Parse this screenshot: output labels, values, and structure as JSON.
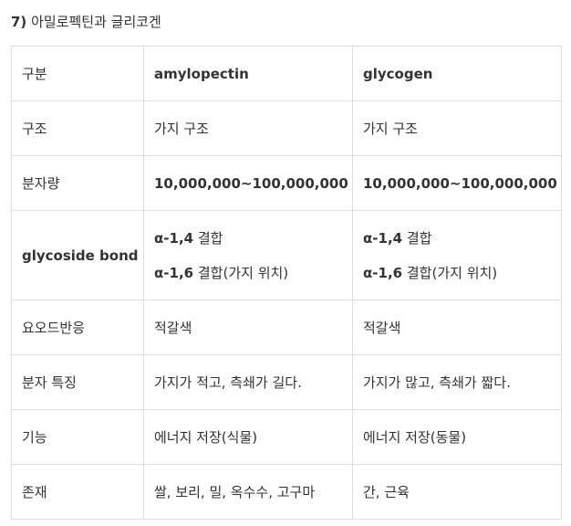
{
  "heading": {
    "number": "7)",
    "title": "아밀로펙틴과 글리코겐"
  },
  "table": {
    "header": [
      "구분",
      "amylopectin",
      "glycogen"
    ],
    "rows": [
      {
        "label": "구조",
        "a": "가지 구조",
        "b": "가지 구조"
      },
      {
        "label": "분자량",
        "a": "10,000,000~100,000,000",
        "b": "10,000,000~100,000,000"
      },
      {
        "label": "glycoside bond",
        "a1_bold": "α-1,4",
        "a1_rest": " 결합",
        "a2_bold": "α-1,6",
        "a2_rest": " 결합(가지 위치)",
        "b1_bold": "α-1,4",
        "b1_rest": " 결합",
        "b2_bold": "α-1,6",
        "b2_rest": " 결합(가지 위치)"
      },
      {
        "label": "요오드반응",
        "a": "적갈색",
        "b": "적갈색"
      },
      {
        "label": "분자 특징",
        "a": "가지가 적고, 측쇄가 길다.",
        "b": "가지가 많고, 측쇄가 짧다."
      },
      {
        "label": "기능",
        "a": "에너지 저장(식물)",
        "b": "에너지 저장(동물)"
      },
      {
        "label": "존재",
        "a": "쌀, 보리, 밀, 옥수수, 고구마",
        "b": "간, 근육"
      }
    ]
  }
}
